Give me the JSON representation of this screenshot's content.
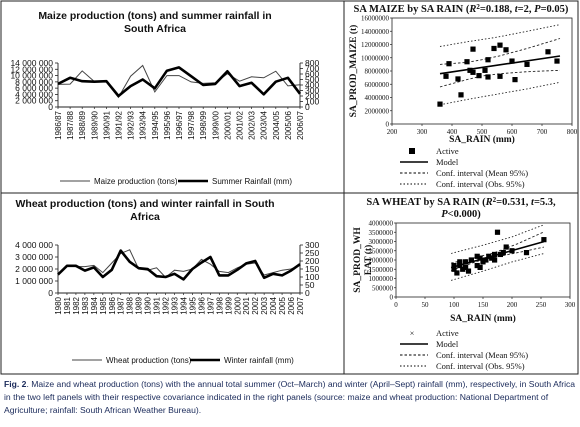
{
  "chart_data": [
    {
      "type": "line",
      "title_lines": [
        "Maize production (tons) and summer rainfall in",
        "South Africa"
      ],
      "categories": [
        "1986/87",
        "1987/88",
        "1988/89",
        "1989/90",
        "1990/91",
        "1991/92",
        "1992/93",
        "1993/94",
        "1994/95",
        "1995/96",
        "1996/97",
        "1997/98",
        "1998/99",
        "1999/00",
        "2000/01",
        "2001/02",
        "2002/03",
        "2003/04",
        "2004/05",
        "2005/06",
        "2006/07"
      ],
      "y_left_ticks": [
        "0",
        "2 000 000",
        "4 000 000",
        "6 000 000",
        "8 000 000",
        "10 000 000",
        "12 000 000",
        "14 000 000"
      ],
      "y_right_ticks": [
        "0",
        "100",
        "200",
        "300",
        "400",
        "500",
        "600",
        "700",
        "800"
      ],
      "ylim_left": [
        0,
        14000000
      ],
      "ylim_right": [
        0,
        800
      ],
      "series": [
        {
          "name": "Maize production (tons)",
          "axis": "left",
          "values": [
            7200000,
            7300000,
            11500000,
            8100000,
            8000000,
            3100000,
            9800000,
            13200000,
            4800000,
            10000000,
            10000000,
            8000000,
            7500000,
            7700000,
            10600000,
            8200000,
            9600000,
            9300000,
            11400000,
            6700000,
            7100000
          ]
        },
        {
          "name": "Summer Rainfall (mm)",
          "axis": "right",
          "values": [
            420,
            530,
            470,
            460,
            470,
            200,
            380,
            500,
            340,
            660,
            720,
            560,
            400,
            420,
            650,
            380,
            440,
            230,
            460,
            530,
            240
          ]
        }
      ],
      "legend": [
        "Maize production (tons)",
        "Summer Rainfall (mm)"
      ],
      "legend_position": "bottom"
    },
    {
      "type": "scatter",
      "title_line1": "SA MAIZE by SA RAIN (R²=0.188, t=2, P=0.05)",
      "title_parts": {
        "prefix": "SA MAIZE by SA RAIN (",
        "r": "R",
        "r_sup": "2",
        "stat": "=0.188, ",
        "t": "t",
        "t_val": "=2, ",
        "p": "P",
        "p_val": "=0.05)"
      },
      "xlabel": "SA_RAIN (mm)",
      "ylabel": "SA_PROD_MAIZE (t)",
      "xlim": [
        200,
        800
      ],
      "ylim": [
        0,
        16000000
      ],
      "x_ticks": [
        "200",
        "300",
        "400",
        "500",
        "600",
        "700",
        "800"
      ],
      "y_ticks": [
        "0",
        "2000000",
        "4000000",
        "6000000",
        "8000000",
        "10000000",
        "12000000",
        "14000000",
        "16000000"
      ],
      "points": [
        [
          360,
          3000000
        ],
        [
          380,
          7200000
        ],
        [
          390,
          9100000
        ],
        [
          420,
          6800000
        ],
        [
          430,
          4400000
        ],
        [
          450,
          9400000
        ],
        [
          460,
          8100000
        ],
        [
          470,
          7800000
        ],
        [
          470,
          11300000
        ],
        [
          490,
          7300000
        ],
        [
          510,
          8100000
        ],
        [
          520,
          9700000
        ],
        [
          520,
          7100000
        ],
        [
          540,
          11400000
        ],
        [
          560,
          7200000
        ],
        [
          560,
          11900000
        ],
        [
          580,
          11200000
        ],
        [
          600,
          9500000
        ],
        [
          610,
          6700000
        ],
        [
          650,
          9000000
        ],
        [
          720,
          10900000
        ],
        [
          750,
          9500000
        ]
      ],
      "model": {
        "intercept": 5200000,
        "slope": 6667
      },
      "mean_ci_lower": [
        [
          360,
          5600000
        ],
        [
          450,
          6700000
        ],
        [
          500,
          7250000
        ],
        [
          560,
          7600000
        ],
        [
          650,
          7900000
        ],
        [
          760,
          8100000
        ]
      ],
      "mean_ci_upper": [
        [
          360,
          9000000
        ],
        [
          450,
          9300000
        ],
        [
          500,
          9700000
        ],
        [
          560,
          10300000
        ],
        [
          650,
          11400000
        ],
        [
          760,
          12900000
        ]
      ],
      "obs_ci_lower": [
        [
          360,
          2900000
        ],
        [
          450,
          3700000
        ],
        [
          550,
          4500000
        ],
        [
          650,
          5300000
        ],
        [
          760,
          6300000
        ]
      ],
      "obs_ci_upper": [
        [
          360,
          11700000
        ],
        [
          450,
          12400000
        ],
        [
          550,
          13100000
        ],
        [
          650,
          14000000
        ],
        [
          760,
          15000000
        ]
      ],
      "legend": [
        "Active",
        "Model",
        "Conf. interval (Mean 95%)",
        "Conf. interval (Obs. 95%)"
      ]
    },
    {
      "type": "line",
      "title_lines": [
        "Wheat production (tons) and winter rainfall in South",
        "Africa"
      ],
      "categories": [
        "1980",
        "1981",
        "1982",
        "1983",
        "1984",
        "1985",
        "1986",
        "1987",
        "1988",
        "1989",
        "1990",
        "1991",
        "1992",
        "1993",
        "1994",
        "1995",
        "1996",
        "1997",
        "1998",
        "1999",
        "2000",
        "2001",
        "2002",
        "2003",
        "2004",
        "2005",
        "2006",
        "2007"
      ],
      "y_left_ticks": [
        "0",
        "1 000 000",
        "2 000 000",
        "3 000 000",
        "4 000 000"
      ],
      "y_right_ticks": [
        "0",
        "50",
        "100",
        "150",
        "200",
        "250",
        "300"
      ],
      "ylim_left": [
        0,
        4000000
      ],
      "ylim_right": [
        0,
        300
      ],
      "series": [
        {
          "name": "Wheat production (tons)",
          "axis": "left",
          "values": [
            1500000,
            2300000,
            2200000,
            2200000,
            2300000,
            1700000,
            2500000,
            3300000,
            3600000,
            2000000,
            1900000,
            2100000,
            1300000,
            1900000,
            1800000,
            2000000,
            2800000,
            2400000,
            1800000,
            1700000,
            2100000,
            2400000,
            2500000,
            1500000,
            1700000,
            1900000,
            2000000,
            2300000
          ]
        },
        {
          "name": "Winter rainfall (mm)",
          "axis": "right",
          "values": [
            115,
            170,
            170,
            140,
            160,
            100,
            145,
            265,
            195,
            155,
            150,
            105,
            100,
            120,
            85,
            150,
            190,
            225,
            110,
            110,
            145,
            185,
            200,
            95,
            120,
            110,
            140,
            180
          ]
        }
      ],
      "legend": [
        "Wheat production (tons)",
        "Winter rainfall (mm)"
      ],
      "legend_position": "bottom"
    },
    {
      "type": "scatter",
      "title_line1": "SA WHEAT by SA RAIN (R²=0.531, t=5.3,",
      "title_line2": "P<0.000)",
      "title_parts": {
        "prefix": "SA WHEAT by SA RAIN (",
        "r": "R",
        "r_sup": "2",
        "stat": "=0.531, ",
        "t": "t",
        "t_val": "=5.3,",
        "p": "P",
        "p_val": "<0.000)"
      },
      "xlabel": "SA_RAIN (mm)",
      "ylabel_lines": [
        "SA_PROD_WH",
        "EAT (t)"
      ],
      "xlim": [
        0,
        300
      ],
      "ylim": [
        0,
        4000000
      ],
      "x_ticks": [
        "0",
        "50",
        "100",
        "150",
        "200",
        "250",
        "300"
      ],
      "y_ticks": [
        "0",
        "500000",
        "1000000",
        "1500000",
        "2000000",
        "2500000",
        "3000000",
        "3500000",
        "4000000"
      ],
      "points": [
        [
          100,
          1500000
        ],
        [
          100,
          1700000
        ],
        [
          105,
          1300000
        ],
        [
          110,
          1900000
        ],
        [
          110,
          1700000
        ],
        [
          110,
          1800000
        ],
        [
          115,
          1500000
        ],
        [
          120,
          1900000
        ],
        [
          120,
          1600000
        ],
        [
          125,
          1400000
        ],
        [
          130,
          2000000
        ],
        [
          140,
          2200000
        ],
        [
          140,
          1700000
        ],
        [
          145,
          2100000
        ],
        [
          145,
          1600000
        ],
        [
          150,
          1900000
        ],
        [
          155,
          2000000
        ],
        [
          160,
          2200000
        ],
        [
          165,
          2100000
        ],
        [
          170,
          2300000
        ],
        [
          170,
          2000000
        ],
        [
          175,
          3500000
        ],
        [
          180,
          2300000
        ],
        [
          185,
          2400000
        ],
        [
          190,
          2700000
        ],
        [
          200,
          2500000
        ],
        [
          225,
          2400000
        ],
        [
          255,
          3100000
        ]
      ],
      "model": {
        "intercept": 750000,
        "slope": 8800
      },
      "mean_ci_lower": [
        [
          95,
          1430000
        ],
        [
          140,
          1930000
        ],
        [
          170,
          2150000
        ],
        [
          210,
          2400000
        ],
        [
          255,
          2700000
        ]
      ],
      "mean_ci_upper": [
        [
          95,
          1830000
        ],
        [
          140,
          2150000
        ],
        [
          170,
          2400000
        ],
        [
          210,
          2880000
        ],
        [
          255,
          3520000
        ]
      ],
      "obs_ci_lower": [
        [
          95,
          900000
        ],
        [
          150,
          1400000
        ],
        [
          200,
          1900000
        ],
        [
          255,
          2350000
        ]
      ],
      "obs_ci_upper": [
        [
          95,
          2350000
        ],
        [
          150,
          2800000
        ],
        [
          200,
          3250000
        ],
        [
          255,
          3900000
        ]
      ],
      "legend": [
        "Active",
        "Model",
        "Conf. interval (Mean 95%)",
        "Conf. interval (Obs. 95%)"
      ]
    }
  ],
  "caption": {
    "label": "Fig. 2",
    "text": ". Maize and wheat production (tons) with the annual total summer (Oct–March) and winter (April–Sept) rainfall (mm), respectively, in South Africa in the two left panels with their respective covariance indicated in the right panels (source: maize and wheat production: National Department of Agriculture; rainfall: South African Weather Bureau)."
  }
}
